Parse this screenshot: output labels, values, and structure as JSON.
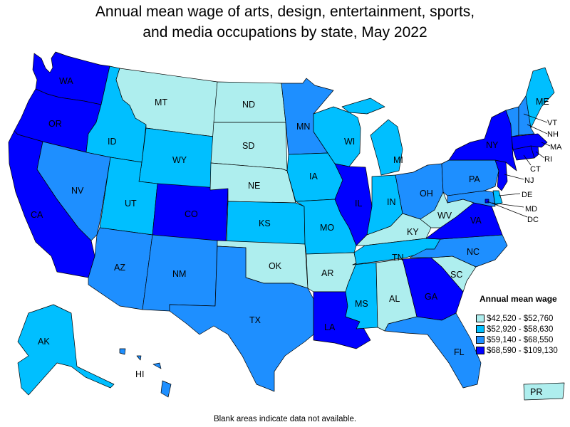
{
  "title_line1": "Annual mean wage of arts, design, entertainment, sports,",
  "title_line2": "and media occupations by state, May 2022",
  "legend": {
    "title": "Annual mean wage",
    "items": [
      {
        "label": "$42,520 - $52,760",
        "color": "#aeeeee"
      },
      {
        "label": "$52,920 - $58,630",
        "color": "#00bfff"
      },
      {
        "label": "$59,140 - $68,550",
        "color": "#1e8fff"
      },
      {
        "label": "$68,590 - $109,130",
        "color": "#0000ff"
      }
    ]
  },
  "footnote": "Blank areas indicate data not available.",
  "states": {
    "WA": {
      "label": "WA",
      "tier": 4
    },
    "OR": {
      "label": "OR",
      "tier": 4
    },
    "CA": {
      "label": "CA",
      "tier": 4
    },
    "ID": {
      "label": "ID",
      "tier": 2
    },
    "NV": {
      "label": "NV",
      "tier": 3
    },
    "MT": {
      "label": "MT",
      "tier": 1
    },
    "WY": {
      "label": "WY",
      "tier": 2
    },
    "UT": {
      "label": "UT",
      "tier": 2
    },
    "CO": {
      "label": "CO",
      "tier": 4
    },
    "AZ": {
      "label": "AZ",
      "tier": 3
    },
    "NM": {
      "label": "NM",
      "tier": 3
    },
    "ND": {
      "label": "ND",
      "tier": 1
    },
    "SD": {
      "label": "SD",
      "tier": 1
    },
    "NE": {
      "label": "NE",
      "tier": 1
    },
    "KS": {
      "label": "KS",
      "tier": 2
    },
    "OK": {
      "label": "OK",
      "tier": 1
    },
    "TX": {
      "label": "TX",
      "tier": 3
    },
    "MN": {
      "label": "MN",
      "tier": 3
    },
    "IA": {
      "label": "IA",
      "tier": 2
    },
    "MO": {
      "label": "MO",
      "tier": 2
    },
    "AR": {
      "label": "AR",
      "tier": 1
    },
    "LA": {
      "label": "LA",
      "tier": 4
    },
    "WI": {
      "label": "WI",
      "tier": 2
    },
    "IL": {
      "label": "IL",
      "tier": 4
    },
    "MI": {
      "label": "MI",
      "tier": 2
    },
    "IN": {
      "label": "IN",
      "tier": 2
    },
    "OH": {
      "label": "OH",
      "tier": 3
    },
    "KY": {
      "label": "KY",
      "tier": 1
    },
    "TN": {
      "label": "TN",
      "tier": 2
    },
    "MS": {
      "label": "MS",
      "tier": 2
    },
    "AL": {
      "label": "AL",
      "tier": 1
    },
    "GA": {
      "label": "GA",
      "tier": 4
    },
    "FL": {
      "label": "FL",
      "tier": 3
    },
    "SC": {
      "label": "SC",
      "tier": 1
    },
    "NC": {
      "label": "NC",
      "tier": 3
    },
    "VA": {
      "label": "VA",
      "tier": 4
    },
    "WV": {
      "label": "WV",
      "tier": 1
    },
    "PA": {
      "label": "PA",
      "tier": 3
    },
    "NY": {
      "label": "NY",
      "tier": 4
    },
    "ME": {
      "label": "ME",
      "tier": 2
    },
    "VT": {
      "label": "VT",
      "tier": 3
    },
    "NH": {
      "label": "NH",
      "tier": 3
    },
    "MA": {
      "label": "MA",
      "tier": 4
    },
    "RI": {
      "label": "RI",
      "tier": 4
    },
    "CT": {
      "label": "CT",
      "tier": 4
    },
    "NJ": {
      "label": "NJ",
      "tier": 4
    },
    "DE": {
      "label": "DE",
      "tier": 2
    },
    "MD": {
      "label": "MD",
      "tier": 3
    },
    "DC": {
      "label": "DC",
      "tier": 4
    },
    "AK": {
      "label": "AK",
      "tier": 2
    },
    "HI": {
      "label": "HI",
      "tier": 3
    },
    "PR": {
      "label": "PR",
      "tier": 1
    }
  }
}
